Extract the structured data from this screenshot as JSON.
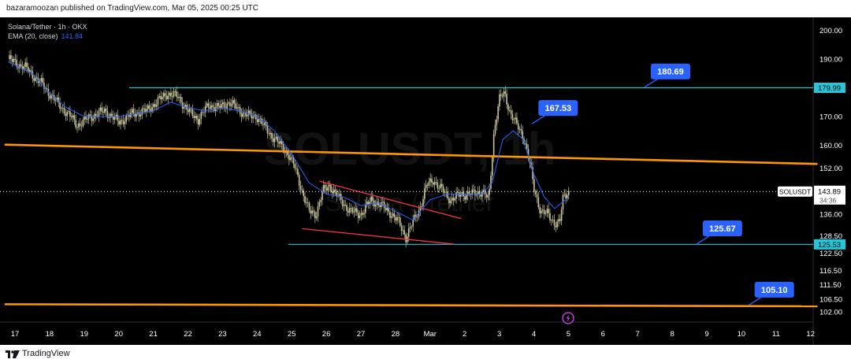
{
  "publisher_line": "bazaramoozan published on TradingView.com, Mar 05, 2025 00:25 UTC",
  "footer_brand": "TradingView",
  "legend": {
    "symbol_line": "Solana/Tether · 1h · OKX",
    "ema_label": "EMA (20, close)",
    "ema_value": "141.84"
  },
  "watermark": {
    "ticker": "SOLUSDT, 1h",
    "name": "Solana / Tether"
  },
  "colors": {
    "background": "#000000",
    "candle": "#c8c49a",
    "ema": "#2962ff",
    "horizontal_level": "#26c6da",
    "trendline_orange": "#ff9800",
    "wedge": "#f23645",
    "callout": "#2962ff",
    "price_tag": "#ffffff"
  },
  "chart_data": {
    "type": "candlestick",
    "title": "Solana/Tether · 1h · OKX",
    "ylim": [
      98.5,
      204.5
    ],
    "y_ticks": [
      "200.00",
      "190.00",
      "180.00",
      "170.00",
      "160.00",
      "152.00",
      "144.00",
      "136.00",
      "128.50",
      "122.50",
      "116.50",
      "111.50",
      "106.50",
      "102.00"
    ],
    "y_tick_values": [
      200,
      190,
      180,
      170,
      160,
      152,
      144,
      136,
      128.5,
      122.5,
      116.5,
      111.5,
      106.5,
      102
    ],
    "x_ticks": [
      "17",
      "18",
      "19",
      "20",
      "21",
      "22",
      "23",
      "24",
      "25",
      "26",
      "27",
      "28",
      "Mar",
      "2",
      "3",
      "4",
      "5",
      "6",
      "7",
      "8",
      "9",
      "10",
      "11",
      "12"
    ],
    "x_tick_days": [
      0,
      1,
      2,
      3,
      4,
      5,
      6,
      7,
      8,
      9,
      10,
      11,
      12,
      13,
      14,
      15,
      16,
      17,
      18,
      19,
      20,
      21,
      22,
      23
    ],
    "last_price": {
      "symbol": "SOLUSDT",
      "value": "143.89",
      "countdown": "34:36",
      "day": 16.0
    },
    "close_series": [
      [
        -0.2,
        190
      ],
      [
        0.3,
        187
      ],
      [
        0.8,
        181
      ],
      [
        1.2,
        175
      ],
      [
        1.6,
        170
      ],
      [
        1.8,
        167
      ],
      [
        2.2,
        170
      ],
      [
        2.6,
        172
      ],
      [
        3.0,
        168
      ],
      [
        3.4,
        171
      ],
      [
        3.8,
        172
      ],
      [
        4.1,
        175
      ],
      [
        4.4,
        178
      ],
      [
        4.7,
        177
      ],
      [
        5.0,
        172
      ],
      [
        5.3,
        169
      ],
      [
        5.6,
        174
      ],
      [
        5.9,
        173
      ],
      [
        6.2,
        175
      ],
      [
        6.5,
        172
      ],
      [
        6.8,
        170
      ],
      [
        7.0,
        170
      ],
      [
        7.3,
        165
      ],
      [
        7.6,
        161
      ],
      [
        7.9,
        157
      ],
      [
        8.1,
        152
      ],
      [
        8.3,
        144
      ],
      [
        8.5,
        137
      ],
      [
        8.7,
        136
      ],
      [
        8.9,
        144
      ],
      [
        9.1,
        146
      ],
      [
        9.4,
        141
      ],
      [
        9.7,
        137
      ],
      [
        10.0,
        136
      ],
      [
        10.3,
        141
      ],
      [
        10.6,
        139
      ],
      [
        10.9,
        136
      ],
      [
        11.1,
        133
      ],
      [
        11.3,
        128
      ],
      [
        11.5,
        133
      ],
      [
        11.7,
        138
      ],
      [
        11.9,
        146
      ],
      [
        12.1,
        148
      ],
      [
        12.3,
        145
      ],
      [
        12.6,
        141
      ],
      [
        12.9,
        143
      ],
      [
        13.2,
        143
      ],
      [
        13.5,
        144
      ],
      [
        13.7,
        141
      ],
      [
        13.85,
        165
      ],
      [
        14.0,
        176
      ],
      [
        14.15,
        178
      ],
      [
        14.3,
        172
      ],
      [
        14.5,
        167
      ],
      [
        14.7,
        163
      ],
      [
        14.85,
        156
      ],
      [
        15.0,
        145
      ],
      [
        15.2,
        137
      ],
      [
        15.4,
        136
      ],
      [
        15.6,
        133
      ],
      [
        15.75,
        133
      ],
      [
        15.85,
        142
      ],
      [
        16.0,
        143.89
      ]
    ],
    "ema_series": [
      [
        -0.2,
        189
      ],
      [
        0.5,
        185
      ],
      [
        1.0,
        178
      ],
      [
        1.5,
        173
      ],
      [
        2.0,
        170
      ],
      [
        2.5,
        170
      ],
      [
        3.0,
        170
      ],
      [
        3.5,
        171
      ],
      [
        4.0,
        172
      ],
      [
        4.5,
        175
      ],
      [
        5.0,
        173
      ],
      [
        5.5,
        172
      ],
      [
        6.0,
        173
      ],
      [
        6.5,
        172
      ],
      [
        7.0,
        170
      ],
      [
        7.5,
        165
      ],
      [
        8.0,
        157
      ],
      [
        8.5,
        147
      ],
      [
        9.0,
        143
      ],
      [
        9.5,
        142
      ],
      [
        10.0,
        139
      ],
      [
        10.5,
        140
      ],
      [
        11.0,
        137
      ],
      [
        11.5,
        134
      ],
      [
        12.0,
        141
      ],
      [
        12.5,
        143
      ],
      [
        13.0,
        143
      ],
      [
        13.5,
        143
      ],
      [
        13.8,
        147
      ],
      [
        14.1,
        162
      ],
      [
        14.4,
        165
      ],
      [
        14.7,
        162
      ],
      [
        15.0,
        150
      ],
      [
        15.3,
        142
      ],
      [
        15.6,
        138
      ],
      [
        16.0,
        141.84
      ]
    ],
    "levels": [
      {
        "value": 179.99,
        "label": "179.99",
        "from_day": 3.3
      },
      {
        "value": 125.53,
        "label": "125.53",
        "from_day": 7.9
      }
    ],
    "trendlines": [
      {
        "kind": "orange",
        "points": [
          [
            -0.3,
            160.2
          ],
          [
            23.2,
            153.5
          ]
        ]
      },
      {
        "kind": "orange",
        "points": [
          [
            -0.3,
            104.7
          ],
          [
            23.2,
            104.0
          ]
        ]
      },
      {
        "kind": "wedge",
        "points": [
          [
            8.8,
            147.5
          ],
          [
            12.9,
            134.5
          ]
        ]
      },
      {
        "kind": "wedge",
        "points": [
          [
            8.3,
            131.0
          ],
          [
            12.7,
            125.6
          ]
        ]
      }
    ],
    "callouts": [
      {
        "label": "180.69",
        "anchor_day": 18.2,
        "anchor_value": 180.2
      },
      {
        "label": "167.53",
        "anchor_day": 14.95,
        "anchor_value": 167.5
      },
      {
        "label": "125.67",
        "anchor_day": 19.7,
        "anchor_value": 125.6
      },
      {
        "label": "105.10",
        "anchor_day": 21.2,
        "anchor_value": 104.3
      }
    ]
  }
}
